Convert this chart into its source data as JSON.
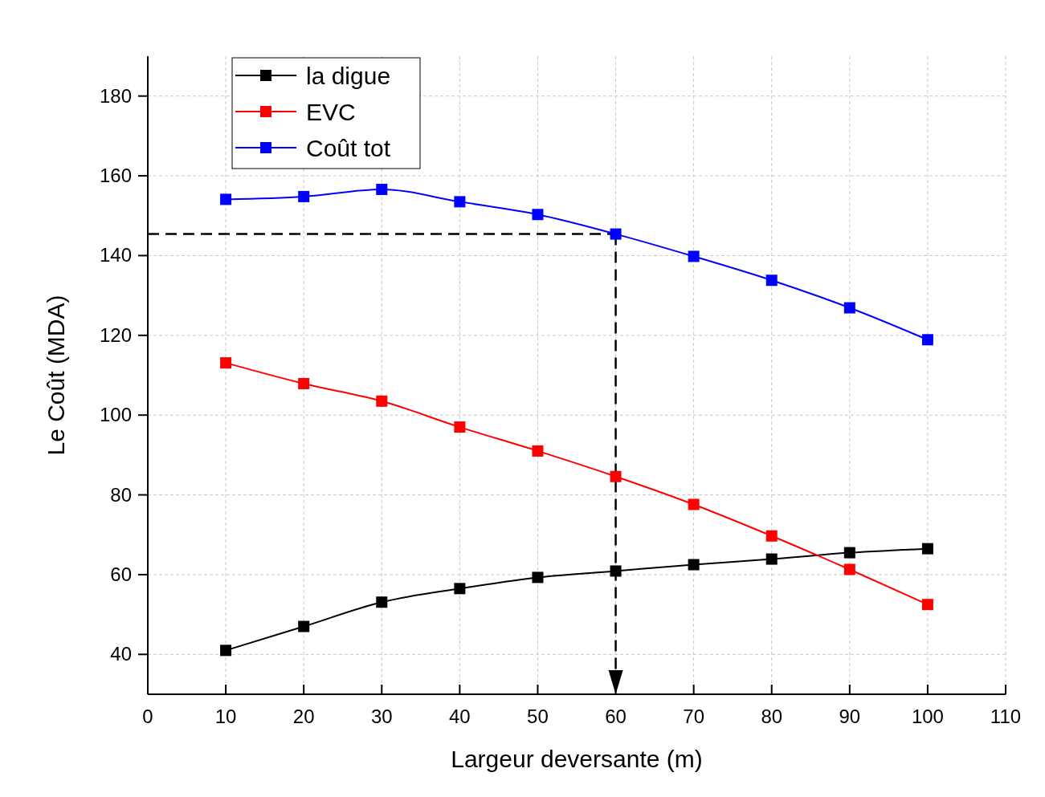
{
  "chart_data": {
    "type": "line",
    "xlabel": "Largeur deversante (m)",
    "ylabel": "Le Coût (MDA)",
    "x": [
      10,
      20,
      30,
      40,
      50,
      60,
      70,
      80,
      90,
      100
    ],
    "series": [
      {
        "name": "la digue",
        "color": "#000000",
        "values": [
          41.0,
          47.0,
          53.1,
          56.5,
          59.3,
          60.9,
          62.5,
          63.9,
          65.5,
          66.5
        ]
      },
      {
        "name": "EVC",
        "color": "#ff0000",
        "values": [
          113.1,
          107.9,
          103.5,
          97.0,
          91.0,
          84.6,
          77.6,
          69.7,
          61.3,
          52.5
        ]
      },
      {
        "name": "Coût tot",
        "color": "#0000ff",
        "values": [
          154.1,
          154.8,
          156.6,
          153.5,
          150.3,
          145.4,
          139.8,
          133.8,
          126.9,
          118.9
        ]
      }
    ],
    "xlim": [
      0,
      110
    ],
    "xticks": [
      0,
      10,
      20,
      30,
      40,
      50,
      60,
      70,
      80,
      90,
      100,
      110
    ],
    "ylim": [
      30,
      190
    ],
    "yticks": [
      40,
      60,
      80,
      100,
      120,
      140,
      160,
      180
    ],
    "grid": true,
    "legend": "top left",
    "marker": "square",
    "line_style": "solid",
    "ref_lines": [
      {
        "axis": "y",
        "value": 145.4,
        "color": "#000000",
        "line_style": "dashed"
      },
      {
        "axis": "x",
        "value": 60,
        "color": "#000000",
        "line_style": "dashed"
      }
    ]
  }
}
